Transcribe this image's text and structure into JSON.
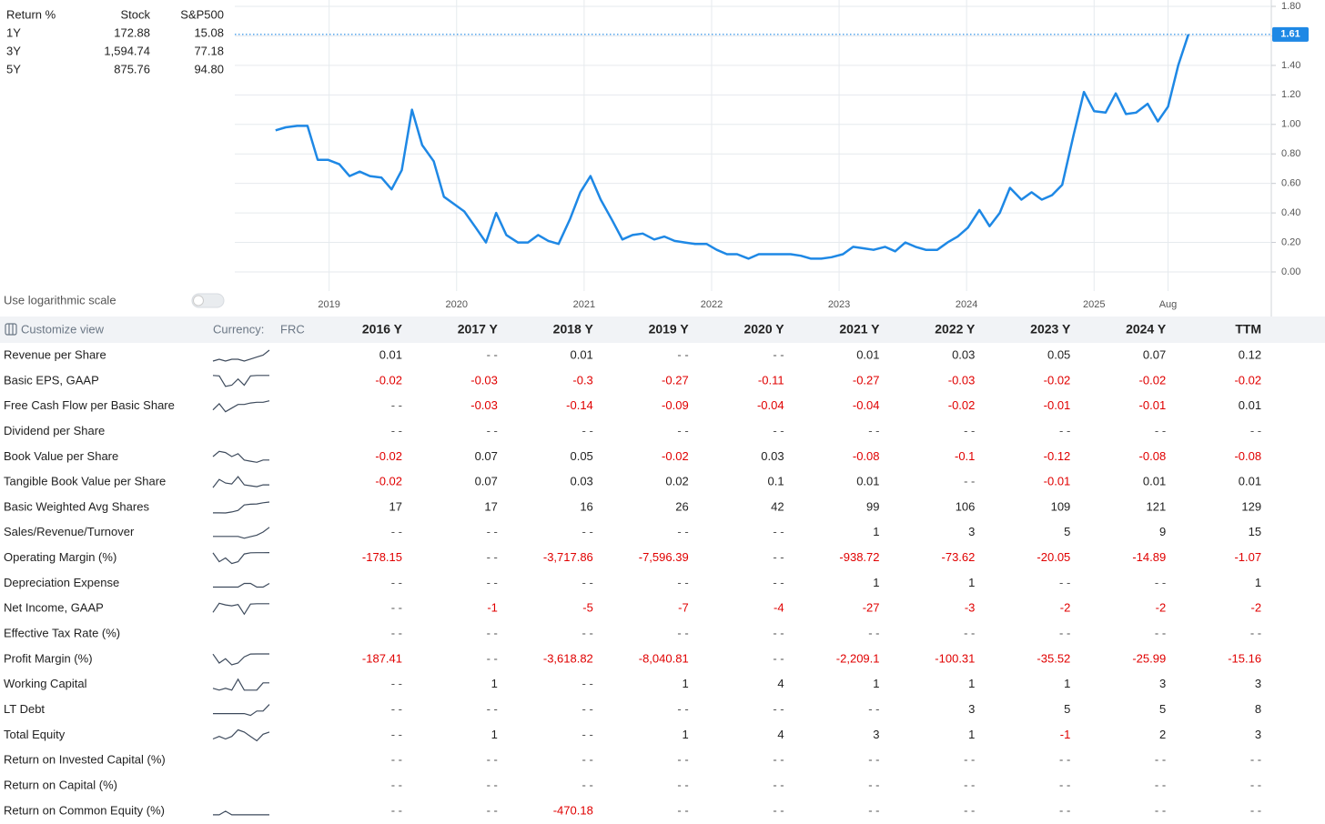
{
  "returns": {
    "header": [
      "Return %",
      "Stock",
      "S&P500"
    ],
    "rows": [
      [
        "1Y",
        "172.88",
        "15.08"
      ],
      [
        "3Y",
        "1,594.74",
        "77.18"
      ],
      [
        "5Y",
        "875.76",
        "94.80"
      ]
    ]
  },
  "chart_data": {
    "type": "line",
    "color": "#1e88e5",
    "x": [
      2018.58,
      2018.66,
      2018.75,
      2018.83,
      2018.91,
      2018.99,
      2019.08,
      2019.16,
      2019.24,
      2019.32,
      2019.41,
      2019.49,
      2019.57,
      2019.65,
      2019.73,
      2019.82,
      2019.9,
      2019.98,
      2020.06,
      2020.15,
      2020.23,
      2020.31,
      2020.39,
      2020.48,
      2020.56,
      2020.64,
      2020.72,
      2020.8,
      2020.89,
      2020.97,
      2021.05,
      2021.13,
      2021.22,
      2021.3,
      2021.38,
      2021.46,
      2021.55,
      2021.63,
      2021.71,
      2021.79,
      2021.87,
      2021.96,
      2022.04,
      2022.12,
      2022.2,
      2022.29,
      2022.37,
      2022.45,
      2022.53,
      2022.62,
      2022.7,
      2022.78,
      2022.86,
      2022.94,
      2023.03,
      2023.11,
      2023.19,
      2023.27,
      2023.36,
      2023.44,
      2023.52,
      2023.6,
      2023.68,
      2023.77,
      2023.85,
      2023.93,
      2024.01,
      2024.1,
      2024.18,
      2024.26,
      2024.34,
      2024.43,
      2024.51,
      2024.59,
      2024.67,
      2024.75,
      2024.84,
      2024.92,
      2025.0,
      2025.09,
      2025.17,
      2025.25,
      2025.33,
      2025.42,
      2025.5,
      2025.58,
      2025.66,
      2025.74
    ],
    "values": [
      0.96,
      0.98,
      0.99,
      0.99,
      0.76,
      0.76,
      0.73,
      0.65,
      0.68,
      0.65,
      0.64,
      0.56,
      0.69,
      1.1,
      0.86,
      0.75,
      0.51,
      0.46,
      0.41,
      0.3,
      0.2,
      0.4,
      0.25,
      0.2,
      0.2,
      0.25,
      0.21,
      0.19,
      0.36,
      0.54,
      0.65,
      0.49,
      0.35,
      0.22,
      0.25,
      0.26,
      0.22,
      0.24,
      0.21,
      0.2,
      0.19,
      0.19,
      0.15,
      0.12,
      0.12,
      0.09,
      0.12,
      0.12,
      0.12,
      0.12,
      0.11,
      0.09,
      0.09,
      0.1,
      0.12,
      0.17,
      0.16,
      0.15,
      0.17,
      0.14,
      0.2,
      0.17,
      0.15,
      0.15,
      0.2,
      0.24,
      0.3,
      0.42,
      0.31,
      0.4,
      0.57,
      0.49,
      0.54,
      0.49,
      0.52,
      0.59,
      0.93,
      1.22,
      1.09,
      1.08,
      1.21,
      1.07,
      1.08,
      1.14,
      1.02,
      1.12,
      1.4,
      1.61
    ],
    "xlim": [
      2018.26,
      2026.39
    ],
    "ylim": [
      0,
      1.8
    ],
    "xticks": [
      2019,
      2020,
      2021,
      2022,
      2023,
      2024,
      2025,
      {
        "value": 2025.58,
        "label": "Aug"
      }
    ],
    "yticks": [
      {
        "value": 0,
        "label": "0.00"
      },
      {
        "value": 0.2,
        "label": "0.20"
      },
      {
        "value": 0.4,
        "label": "0.40"
      },
      {
        "value": 0.6,
        "label": "0.60"
      },
      {
        "value": 0.8,
        "label": "0.80"
      },
      {
        "value": 1,
        "label": "1.00"
      },
      {
        "value": 1.2,
        "label": "1.20"
      },
      {
        "value": 1.4,
        "label": "1.40"
      },
      {
        "value": 1.6,
        "label": "1.60"
      },
      {
        "value": 1.8,
        "label": "1.80"
      }
    ],
    "grid": true,
    "log_scale": false,
    "log_scale_label": "Use logarithmic scale"
  },
  "table": {
    "customize_label": "Customize view",
    "currency_label": "Currency:",
    "currency": "FRC",
    "columns": [
      "2016 Y",
      "2017 Y",
      "2018 Y",
      "2019 Y",
      "2020 Y",
      "2021 Y",
      "2022 Y",
      "2023 Y",
      "2024 Y",
      "TTM"
    ],
    "rows": [
      {
        "name": "Revenue per Share",
        "values": [
          0.01,
          "- -",
          0.01,
          "- -",
          "- -",
          0.01,
          0.03,
          0.05,
          0.07,
          0.12
        ]
      },
      {
        "name": "Basic EPS, GAAP",
        "values": [
          -0.02,
          -0.03,
          -0.3,
          -0.27,
          -0.11,
          -0.27,
          -0.03,
          -0.02,
          -0.02,
          -0.02
        ]
      },
      {
        "name": "Free Cash Flow per Basic Share",
        "values": [
          "- -",
          -0.03,
          -0.14,
          -0.09,
          -0.04,
          -0.04,
          -0.02,
          -0.01,
          -0.01,
          0.01
        ]
      },
      {
        "name": "Dividend per Share",
        "values": [
          "- -",
          "- -",
          "- -",
          "- -",
          "- -",
          "- -",
          "- -",
          "- -",
          "- -",
          "- -"
        ]
      },
      {
        "name": "Book Value per Share",
        "values": [
          -0.02,
          0.07,
          0.05,
          -0.02,
          0.03,
          -0.08,
          -0.1,
          -0.12,
          -0.08,
          -0.08
        ]
      },
      {
        "name": "Tangible Book Value per Share",
        "values": [
          -0.02,
          0.07,
          0.03,
          0.02,
          0.1,
          0.01,
          "- -",
          -0.01,
          0.01,
          0.01
        ]
      },
      {
        "name": "Basic Weighted Avg Shares",
        "values": [
          17,
          17,
          16,
          26,
          42,
          99,
          106,
          109,
          121,
          129
        ]
      },
      {
        "name": "Sales/Revenue/Turnover",
        "values": [
          "- -",
          "- -",
          "- -",
          "- -",
          "- -",
          1,
          3,
          5,
          9,
          15
        ]
      },
      {
        "name": "Operating Margin (%)",
        "values": [
          -178.15,
          "- -",
          "-3,717.86",
          "-7,596.39",
          "- -",
          -938.72,
          -73.62,
          -20.05,
          -14.89,
          -1.07
        ]
      },
      {
        "name": "Depreciation Expense",
        "values": [
          "- -",
          "- -",
          "- -",
          "- -",
          "- -",
          1,
          1,
          "- -",
          "- -",
          1
        ]
      },
      {
        "name": "Net Income, GAAP",
        "values": [
          "- -",
          -1,
          -5,
          -7,
          -4,
          -27,
          -3,
          -2,
          -2,
          -2
        ]
      },
      {
        "name": "Effective Tax Rate (%)",
        "values": [
          "- -",
          "- -",
          "- -",
          "- -",
          "- -",
          "- -",
          "- -",
          "- -",
          "- -",
          "- -"
        ]
      },
      {
        "name": "Profit Margin (%)",
        "values": [
          -187.41,
          "- -",
          "-3,618.82",
          "-8,040.81",
          "- -",
          "-2,209.1",
          -100.31,
          -35.52,
          -25.99,
          -15.16
        ]
      },
      {
        "name": "Working Capital",
        "values": [
          "- -",
          1,
          "- -",
          1,
          4,
          1,
          1,
          1,
          3,
          3
        ]
      },
      {
        "name": "LT Debt",
        "values": [
          "- -",
          "- -",
          "- -",
          "- -",
          "- -",
          "- -",
          3,
          5,
          5,
          8
        ]
      },
      {
        "name": "Total Equity",
        "values": [
          "- -",
          1,
          "- -",
          1,
          4,
          3,
          1,
          -1,
          2,
          3
        ]
      },
      {
        "name": "Return on Invested Capital (%)",
        "values": [
          "- -",
          "- -",
          "- -",
          "- -",
          "- -",
          "- -",
          "- -",
          "- -",
          "- -",
          "- -"
        ]
      },
      {
        "name": "Return on Capital (%)",
        "values": [
          "- -",
          "- -",
          "- -",
          "- -",
          "- -",
          "- -",
          "- -",
          "- -",
          "- -",
          "- -"
        ]
      },
      {
        "name": "Return on Common Equity (%)",
        "values": [
          "- -",
          "- -",
          -470.18,
          "- -",
          "- -",
          "- -",
          "- -",
          "- -",
          "- -",
          "- -"
        ]
      }
    ]
  }
}
